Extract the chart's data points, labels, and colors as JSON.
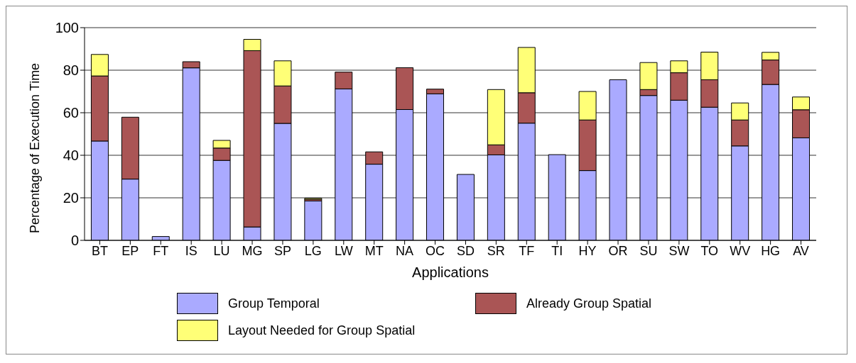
{
  "chart_data": {
    "type": "bar",
    "stacked": true,
    "xlabel": "Applications",
    "ylabel": "Percentage of Execution Time",
    "categories": [
      "BT",
      "EP",
      "FT",
      "IS",
      "LU",
      "MG",
      "SP",
      "LG",
      "LW",
      "MT",
      "NA",
      "OC",
      "SD",
      "SR",
      "TF",
      "TI",
      "HY",
      "OR",
      "SU",
      "SW",
      "TO",
      "WV",
      "HG",
      "AV"
    ],
    "series": [
      {
        "name": "Group Temporal",
        "color": "#aaaaff",
        "values": [
          46.7,
          28.8,
          1.8,
          81.1,
          37.6,
          6.3,
          55.0,
          18.5,
          71.2,
          35.8,
          61.5,
          68.9,
          31.0,
          40.2,
          55.1,
          40.3,
          32.8,
          75.5,
          68.1,
          65.9,
          62.6,
          44.4,
          73.3,
          48.2
        ]
      },
      {
        "name": "Already Group Spatial",
        "color": "#aa5555",
        "values": [
          30.6,
          29.1,
          0,
          2.9,
          5.8,
          82.9,
          17.6,
          0.8,
          7.9,
          5.8,
          19.7,
          2.2,
          0,
          4.7,
          14.3,
          0,
          23.8,
          0,
          2.8,
          12.9,
          12.9,
          12.2,
          11.5,
          13.2
        ]
      },
      {
        "name": "Layout Needed for Group Spatial",
        "color": "#ffff77",
        "values": [
          10.1,
          0,
          0,
          0,
          3.6,
          5.3,
          11.8,
          0.5,
          0,
          0,
          0,
          0,
          0,
          26.0,
          21.3,
          0,
          13.4,
          0,
          12.7,
          5.6,
          13.0,
          8.0,
          3.6,
          6.0
        ]
      }
    ],
    "ylim": [
      0,
      100
    ],
    "yticks": [
      0,
      20,
      40,
      60,
      80,
      100
    ],
    "grid": "y",
    "legend": "bottom"
  }
}
